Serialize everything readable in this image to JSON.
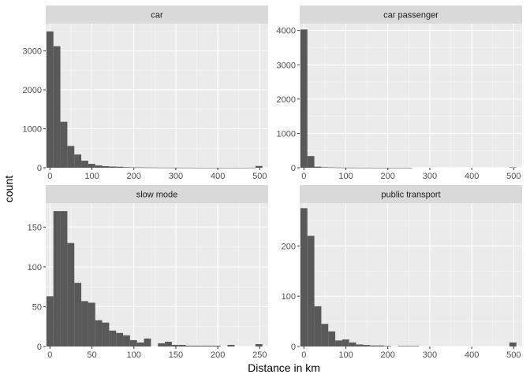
{
  "figure": {
    "xlabel": "Distance in km",
    "ylabel": "count"
  },
  "colors": {
    "panel_bg": "#ebebeb",
    "grid_major": "#ffffff",
    "strip_bg": "#d9d9d9",
    "bar_fill": "#595959",
    "tick_color": "#333333"
  },
  "chart_data": [
    {
      "type": "bar",
      "title": "car",
      "xlim": [
        -10,
        520
      ],
      "ylim": [
        0,
        3700
      ],
      "xticks": [
        0,
        100,
        200,
        300,
        400,
        500
      ],
      "yticks": [
        0,
        1000,
        2000,
        3000
      ],
      "x_minor_grid": [
        50,
        150,
        250,
        350,
        450
      ],
      "y_minor_grid": [
        500,
        1500,
        2500,
        3500
      ],
      "bin_width": 16.6,
      "bin_centers": [
        0,
        16.6,
        33.2,
        49.8,
        66.4,
        83,
        99.6,
        116.2,
        132.8,
        149.4,
        166,
        182.6,
        199.2,
        215.8,
        232.4,
        249,
        265.6,
        282.2,
        298.8,
        315.4,
        332,
        348.6,
        365.2,
        381.8,
        398.4,
        415,
        431.6,
        448.2,
        464.8,
        481.4,
        498
      ],
      "values": [
        3500,
        3120,
        1180,
        560,
        340,
        180,
        100,
        60,
        40,
        30,
        25,
        15,
        10,
        8,
        6,
        5,
        4,
        3,
        3,
        2,
        2,
        1,
        1,
        1,
        1,
        1,
        1,
        1,
        1,
        2,
        45
      ]
    },
    {
      "type": "bar",
      "title": "car passenger",
      "xlim": [
        -10,
        520
      ],
      "ylim": [
        0,
        4200
      ],
      "xticks": [
        0,
        100,
        200,
        300,
        400,
        500
      ],
      "yticks": [
        0,
        1000,
        2000,
        3000,
        4000
      ],
      "x_minor_grid": [
        50,
        150,
        250,
        350,
        450
      ],
      "y_minor_grid": [
        500,
        1500,
        2500,
        3500
      ],
      "bin_width": 16.6,
      "bin_centers": [
        0,
        16.6,
        33.2,
        49.8,
        66.4,
        83,
        99.6,
        116.2,
        132.8,
        149.4,
        166,
        182.6,
        199.2,
        215.8,
        232.4,
        249,
        265.6,
        282.2,
        298.8,
        315.4,
        332,
        348.6,
        365.2,
        381.8,
        398.4,
        415,
        431.6,
        448.2,
        464.8,
        481.4,
        498
      ],
      "values": [
        4030,
        340,
        30,
        15,
        10,
        6,
        4,
        3,
        2,
        2,
        1,
        1,
        1,
        1,
        1,
        1,
        0,
        0,
        0,
        0,
        0,
        0,
        0,
        0,
        0,
        0,
        0,
        0,
        0,
        0,
        12
      ]
    },
    {
      "type": "bar",
      "title": "slow mode",
      "xlim": [
        -5,
        260
      ],
      "ylim": [
        0,
        180
      ],
      "xticks": [
        0,
        50,
        100,
        150,
        200,
        250
      ],
      "yticks": [
        0,
        50,
        100,
        150
      ],
      "x_minor_grid": [
        25,
        75,
        125,
        175,
        225
      ],
      "y_minor_grid": [
        25,
        75,
        125,
        175
      ],
      "bin_width": 8.3,
      "bin_centers": [
        0,
        8.3,
        16.6,
        24.9,
        33.2,
        41.5,
        49.8,
        58.1,
        66.4,
        74.7,
        83,
        91.3,
        99.6,
        107.9,
        116.2,
        124.5,
        132.8,
        141.1,
        149.4,
        157.7,
        166,
        174.3,
        182.6,
        190.9,
        199.2,
        207.5,
        215.8,
        224.1,
        232.4,
        240.7,
        249
      ],
      "values": [
        63,
        170,
        170,
        130,
        80,
        57,
        55,
        33,
        30,
        20,
        17,
        14,
        8,
        5,
        10,
        0,
        4,
        6,
        2,
        2,
        1,
        1,
        1,
        1,
        1,
        0,
        2,
        0,
        0,
        0,
        3
      ]
    },
    {
      "type": "bar",
      "title": "public transport",
      "xlim": [
        -10,
        520
      ],
      "ylim": [
        0,
        285
      ],
      "xticks": [
        0,
        100,
        200,
        300,
        400,
        500
      ],
      "yticks": [
        0,
        100,
        200
      ],
      "x_minor_grid": [
        50,
        150,
        250,
        350,
        450
      ],
      "y_minor_grid": [
        50,
        150,
        250
      ],
      "bin_width": 16.6,
      "bin_centers": [
        0,
        16.6,
        33.2,
        49.8,
        66.4,
        83,
        99.6,
        116.2,
        132.8,
        149.4,
        166,
        182.6,
        199.2,
        215.8,
        232.4,
        249,
        265.6,
        282.2,
        298.8,
        315.4,
        332,
        348.6,
        365.2,
        381.8,
        398.4,
        415,
        431.6,
        448.2,
        464.8,
        481.4,
        498
      ],
      "values": [
        275,
        220,
        80,
        45,
        30,
        12,
        14,
        8,
        4,
        3,
        2,
        2,
        1,
        0,
        1,
        1,
        1,
        0,
        0,
        0,
        0,
        0,
        0,
        0,
        0,
        0,
        0,
        0,
        0,
        0,
        8
      ]
    }
  ]
}
